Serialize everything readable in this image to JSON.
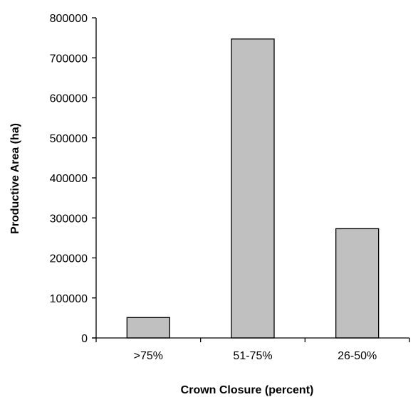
{
  "colors": {
    "bar_fill": "#c0c0c0",
    "bar_stroke": "#000000",
    "axis": "#000000",
    "background": "#ffffff"
  },
  "chart_data": {
    "type": "bar",
    "title": "",
    "xlabel": "Crown Closure (percent)",
    "ylabel": "Productive Area (ha)",
    "categories": [
      ">75%",
      "51-75%",
      "26-50%"
    ],
    "values": [
      51000,
      747000,
      273000
    ],
    "ylim": [
      0,
      800000
    ],
    "yticks": [
      0,
      100000,
      200000,
      300000,
      400000,
      500000,
      600000,
      700000,
      800000
    ],
    "ytick_labels": [
      "0",
      "100000",
      "200000",
      "300000",
      "400000",
      "500000",
      "600000",
      "700000",
      "800000"
    ],
    "grid": false,
    "legend": "none"
  }
}
